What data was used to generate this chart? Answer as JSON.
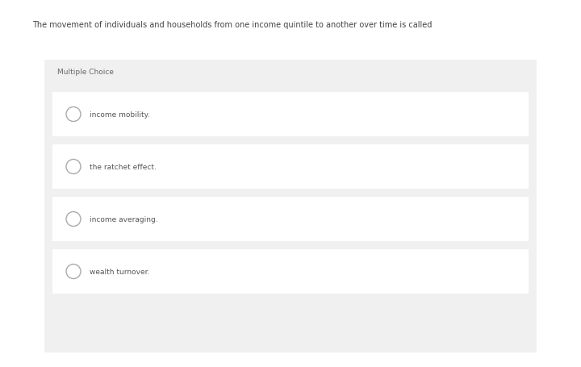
{
  "question": "The movement of individuals and households from one income quintile to another over time is called",
  "section_label": "Multiple Choice",
  "choices": [
    "income mobility.",
    "the ratchet effect.",
    "income averaging.",
    "wealth turnover."
  ],
  "page_bg": "#ffffff",
  "box_bg": "#ffffff",
  "section_bg": "#f0f0f0",
  "question_color": "#444444",
  "choice_color": "#555555",
  "section_color": "#666666",
  "circle_edge": "#aaaaaa",
  "question_fontsize": 7.0,
  "choice_fontsize": 6.5,
  "section_fontsize": 6.5,
  "fig_width": 7.2,
  "fig_height": 4.56,
  "dpi": 100
}
